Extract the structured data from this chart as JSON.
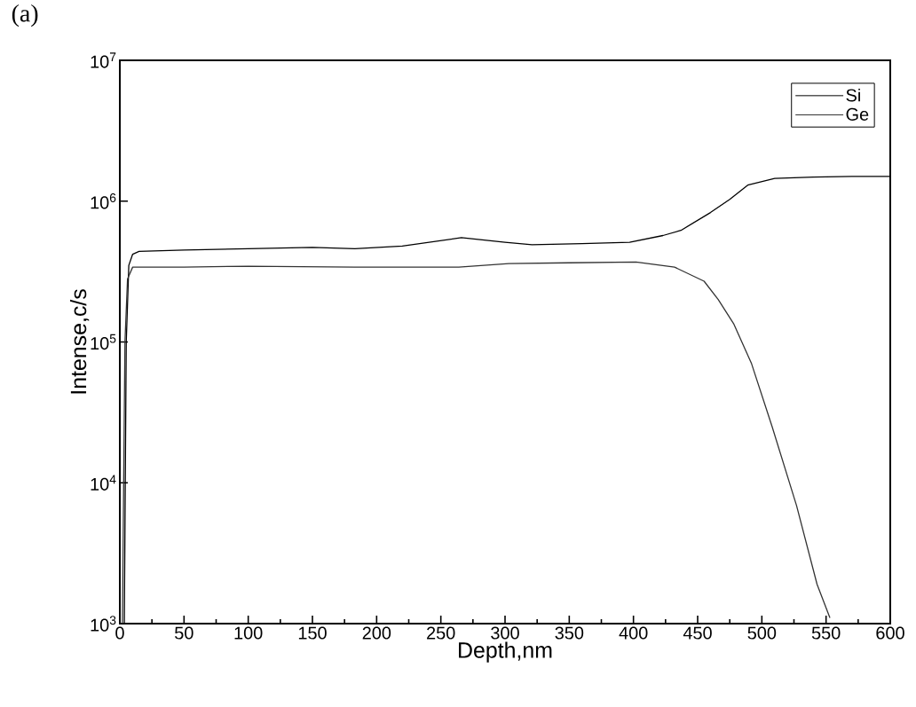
{
  "chart_data": {
    "type": "line",
    "title": "(a)",
    "xlabel": "Depth,nm",
    "ylabel": "Intense,c/s",
    "log": "y",
    "grid": false,
    "legend": "top right",
    "line_style": "solid",
    "marker": "none",
    "xlim": [
      0,
      600
    ],
    "xticks": [
      0,
      50,
      100,
      150,
      200,
      250,
      300,
      350,
      400,
      450,
      500,
      550,
      600
    ],
    "ylim": [
      1000,
      10000000
    ],
    "yticks": [
      {
        "value": 1000,
        "label": "10$^{3}$"
      },
      {
        "value": 10000,
        "label": "10$^{4}$"
      },
      {
        "value": 100000,
        "label": "10$^{5}$"
      },
      {
        "value": 1000000,
        "label": "10$^{6}$"
      },
      {
        "value": 10000000,
        "label": "10$^{7}$"
      }
    ],
    "series": [
      {
        "name": "Si",
        "color": "#000000",
        "x": [
          3.5,
          5,
          7,
          10,
          15,
          50,
          100,
          150,
          183,
          220,
          266,
          300,
          321,
          360,
          397,
          423,
          437,
          460,
          475,
          489,
          510,
          540,
          570,
          600
        ],
        "values": [
          1000,
          100000,
          350000,
          420000,
          440000,
          450000,
          460000,
          470000,
          460000,
          480000,
          550000,
          510000,
          490000,
          500000,
          510000,
          570000,
          620000,
          830000,
          1030000,
          1300000,
          1450000,
          1480000,
          1500000,
          1500000
        ]
      },
      {
        "name": "Ge",
        "color": "#333333",
        "x": [
          2,
          4,
          6,
          10,
          50,
          100,
          183,
          264,
          303,
          350,
          402,
          432,
          455,
          466,
          478,
          492,
          508,
          527,
          543,
          553
        ],
        "values": [
          1000,
          100000,
          280000,
          340000,
          340000,
          345000,
          340000,
          340000,
          360000,
          365000,
          370000,
          340000,
          270000,
          200000,
          135000,
          70000,
          25000,
          6900,
          1900,
          1100
        ]
      }
    ]
  }
}
